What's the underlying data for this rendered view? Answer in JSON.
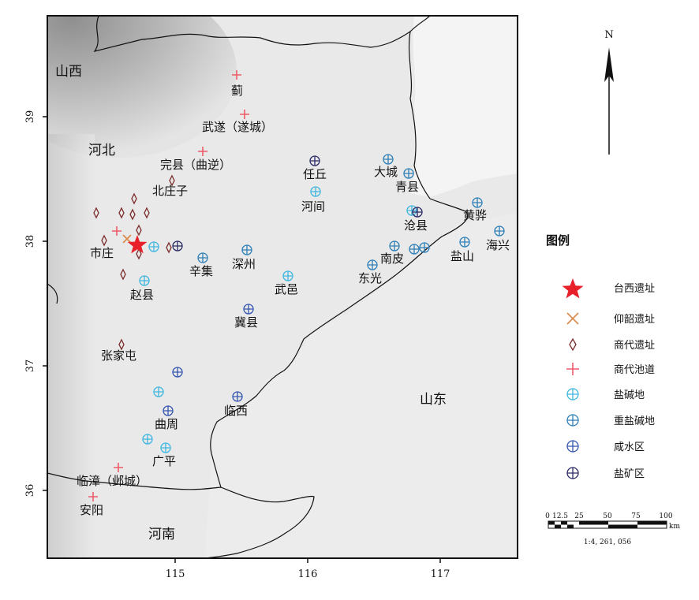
{
  "regions": {
    "shanxi": "山西",
    "hebei": "河北",
    "shandong": "山东",
    "henan": "河南"
  },
  "axes": {
    "x_ticks": [
      "115",
      "116",
      "117"
    ],
    "y_ticks": [
      "39",
      "38",
      "37",
      "36"
    ]
  },
  "north_label": "N",
  "places": {
    "ji": "蓟",
    "wusui": "武遂（遂城）",
    "wanxian": "完县（曲逆）",
    "beizhuangzi": "北庄子",
    "shizhuang": "市庄",
    "zhaoxian": "赵县",
    "xinji": "辛集",
    "shenzhou": "深州",
    "wuyi": "武邑",
    "jixian": "冀县",
    "renqiu": "任丘",
    "hejian": "河间",
    "dacheng": "大城",
    "qingxian": "青县",
    "cangxian": "沧县",
    "huanghua": "黄骅",
    "haixing": "海兴",
    "yanshan": "盐山",
    "nanpi": "南皮",
    "dongguang": "东光",
    "zhangjiatun": "张家屯",
    "quzhou": "曲周",
    "guangping": "广平",
    "linxi": "临西",
    "linzhang": "临漳（邺城）",
    "anyang": "安阳"
  },
  "legend": {
    "title": "图例",
    "items": [
      {
        "label": "台西遗址",
        "symbol": "star",
        "color": "#e8202a"
      },
      {
        "label": "仰韶遗址",
        "symbol": "x",
        "color": "#d98a4a"
      },
      {
        "label": "商代遗址",
        "symbol": "diamond",
        "color": "#7a2a2a"
      },
      {
        "label": "商代池道",
        "symbol": "plus",
        "color": "#ee5b6a"
      },
      {
        "label": "盐碱地",
        "symbol": "circle-plus",
        "color": "#3fb6e0"
      },
      {
        "label": "重盐碱地",
        "symbol": "circle-plus",
        "color": "#2e7fb8"
      },
      {
        "label": "咸水区",
        "symbol": "circle-plus",
        "color": "#3555b0"
      },
      {
        "label": "盐矿区",
        "symbol": "circle-plus",
        "color": "#2a2a66"
      }
    ]
  },
  "scalebar": {
    "ticks": [
      "0",
      "12.5",
      "25",
      "50",
      "75",
      "100"
    ],
    "unit": "km",
    "ratio": "1:4, 261, 056"
  }
}
